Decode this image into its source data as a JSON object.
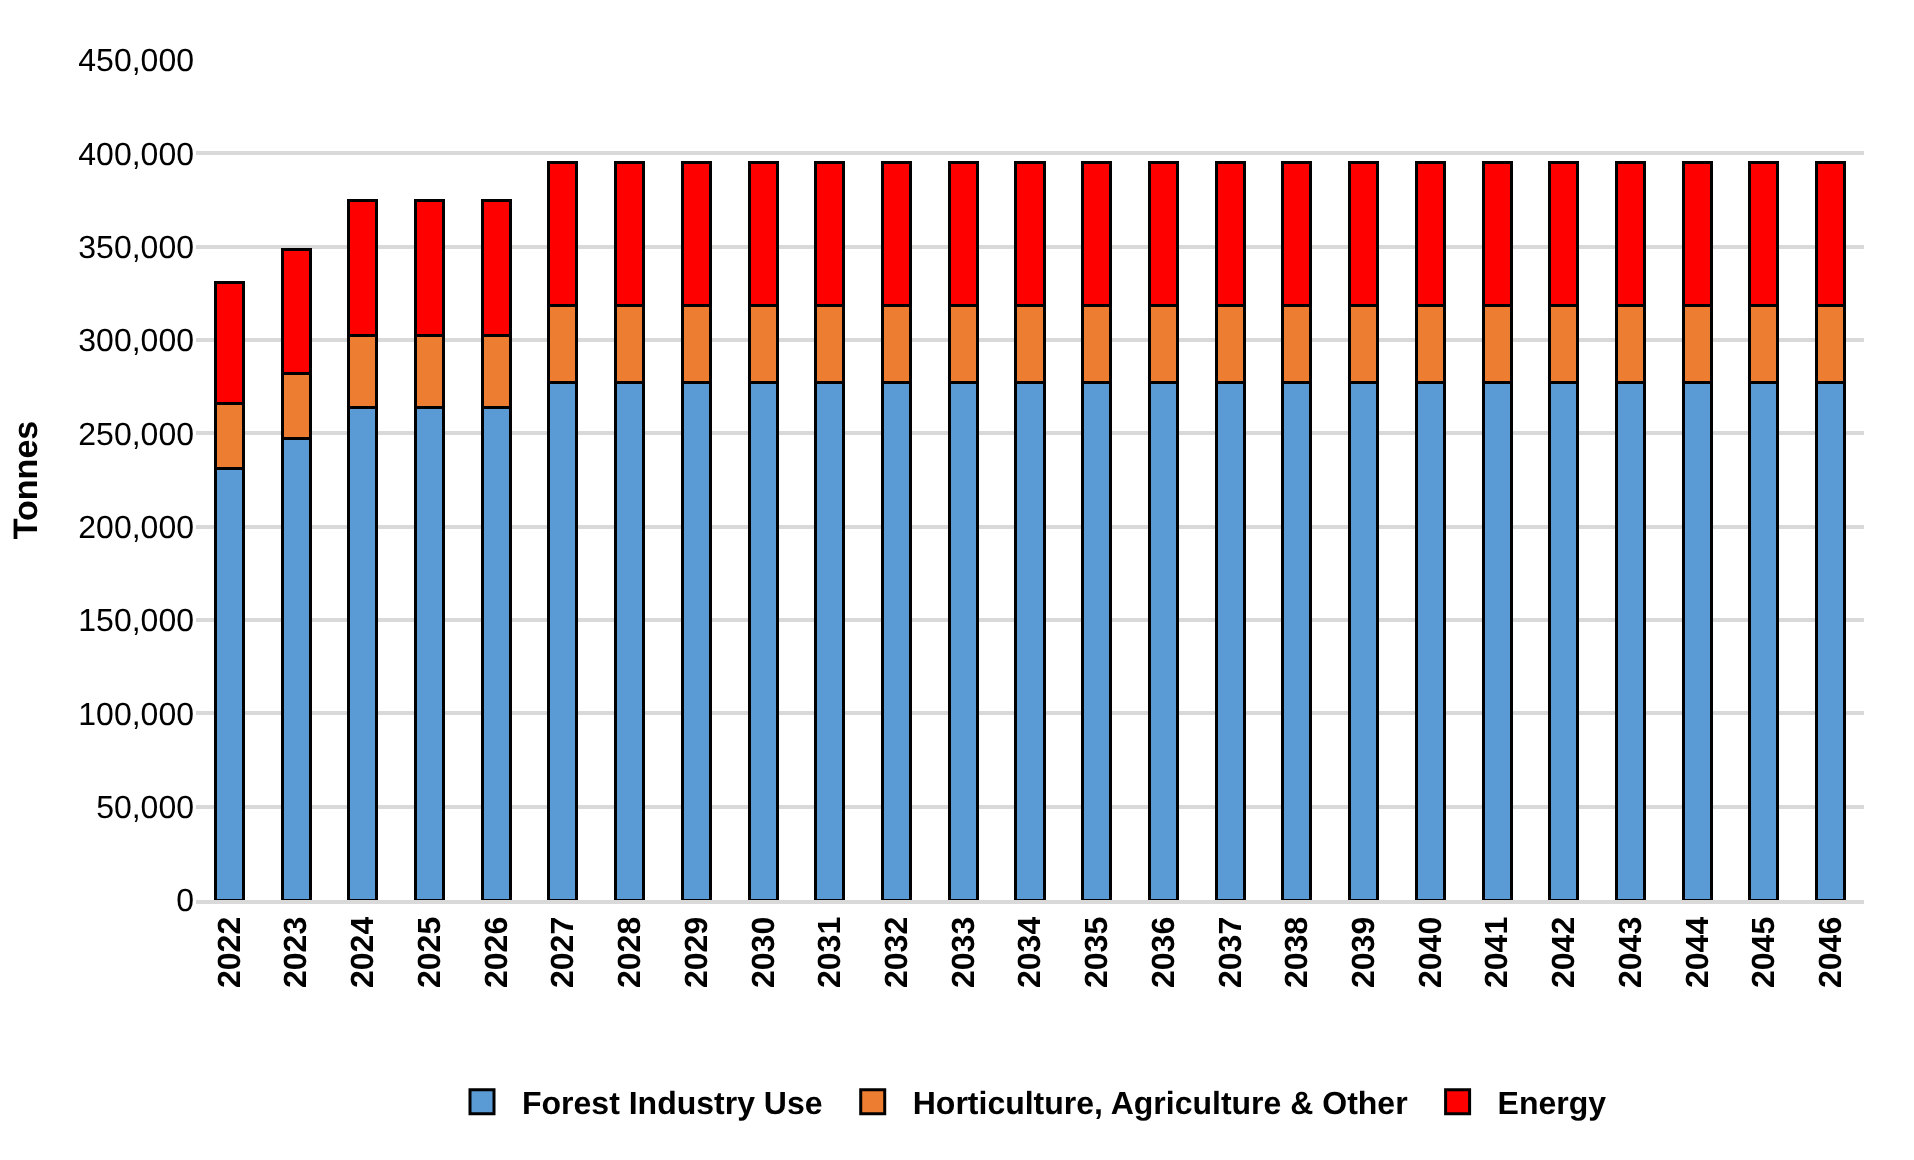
{
  "chart_data": {
    "type": "bar",
    "stacked": true,
    "ylabel": "Tonnes",
    "categories": [
      "2022",
      "2023",
      "2024",
      "2025",
      "2026",
      "2027",
      "2028",
      "2029",
      "2030",
      "2031",
      "2032",
      "2033",
      "2034",
      "2035",
      "2036",
      "2037",
      "2038",
      "2039",
      "2040",
      "2041",
      "2042",
      "2043",
      "2044",
      "2045",
      "2046"
    ],
    "series": [
      {
        "name": "Forest Industry Use",
        "color": "#5b9bd5",
        "values": [
          231000,
          247000,
          264000,
          264000,
          264000,
          277000,
          277000,
          277000,
          277000,
          277000,
          277000,
          277000,
          277000,
          277000,
          277000,
          277000,
          277000,
          277000,
          277000,
          277000,
          277000,
          277000,
          277000,
          277000,
          277000
        ]
      },
      {
        "name": "Horticulture, Agriculture & Other",
        "color": "#ed7d31",
        "values": [
          35000,
          35000,
          38500,
          38500,
          38500,
          41500,
          41500,
          41500,
          41500,
          41500,
          41500,
          41500,
          41500,
          41500,
          41500,
          41500,
          41500,
          41500,
          41500,
          41500,
          41500,
          41500,
          41500,
          41500,
          41500
        ]
      },
      {
        "name": "Energy",
        "color": "#ff0000",
        "values": [
          65000,
          66500,
          72500,
          72500,
          72500,
          76500,
          76500,
          76500,
          76500,
          76500,
          76500,
          76500,
          76500,
          76500,
          76500,
          76500,
          76500,
          76500,
          76500,
          76500,
          76500,
          76500,
          76500,
          76500,
          76500
        ]
      }
    ],
    "ylim": [
      0,
      450000
    ],
    "yticks": [
      {
        "value": 0,
        "label": "0"
      },
      {
        "value": 50000,
        "label": "50,000"
      },
      {
        "value": 100000,
        "label": "100,000"
      },
      {
        "value": 150000,
        "label": "150,000"
      },
      {
        "value": 200000,
        "label": "200,000"
      },
      {
        "value": 250000,
        "label": "250,000"
      },
      {
        "value": 300000,
        "label": "300,000"
      },
      {
        "value": 350000,
        "label": "350,000"
      },
      {
        "value": 400000,
        "label": "400,000"
      },
      {
        "value": 450000,
        "label": "450,000"
      }
    ],
    "grid": "y",
    "legend": "bottom"
  }
}
